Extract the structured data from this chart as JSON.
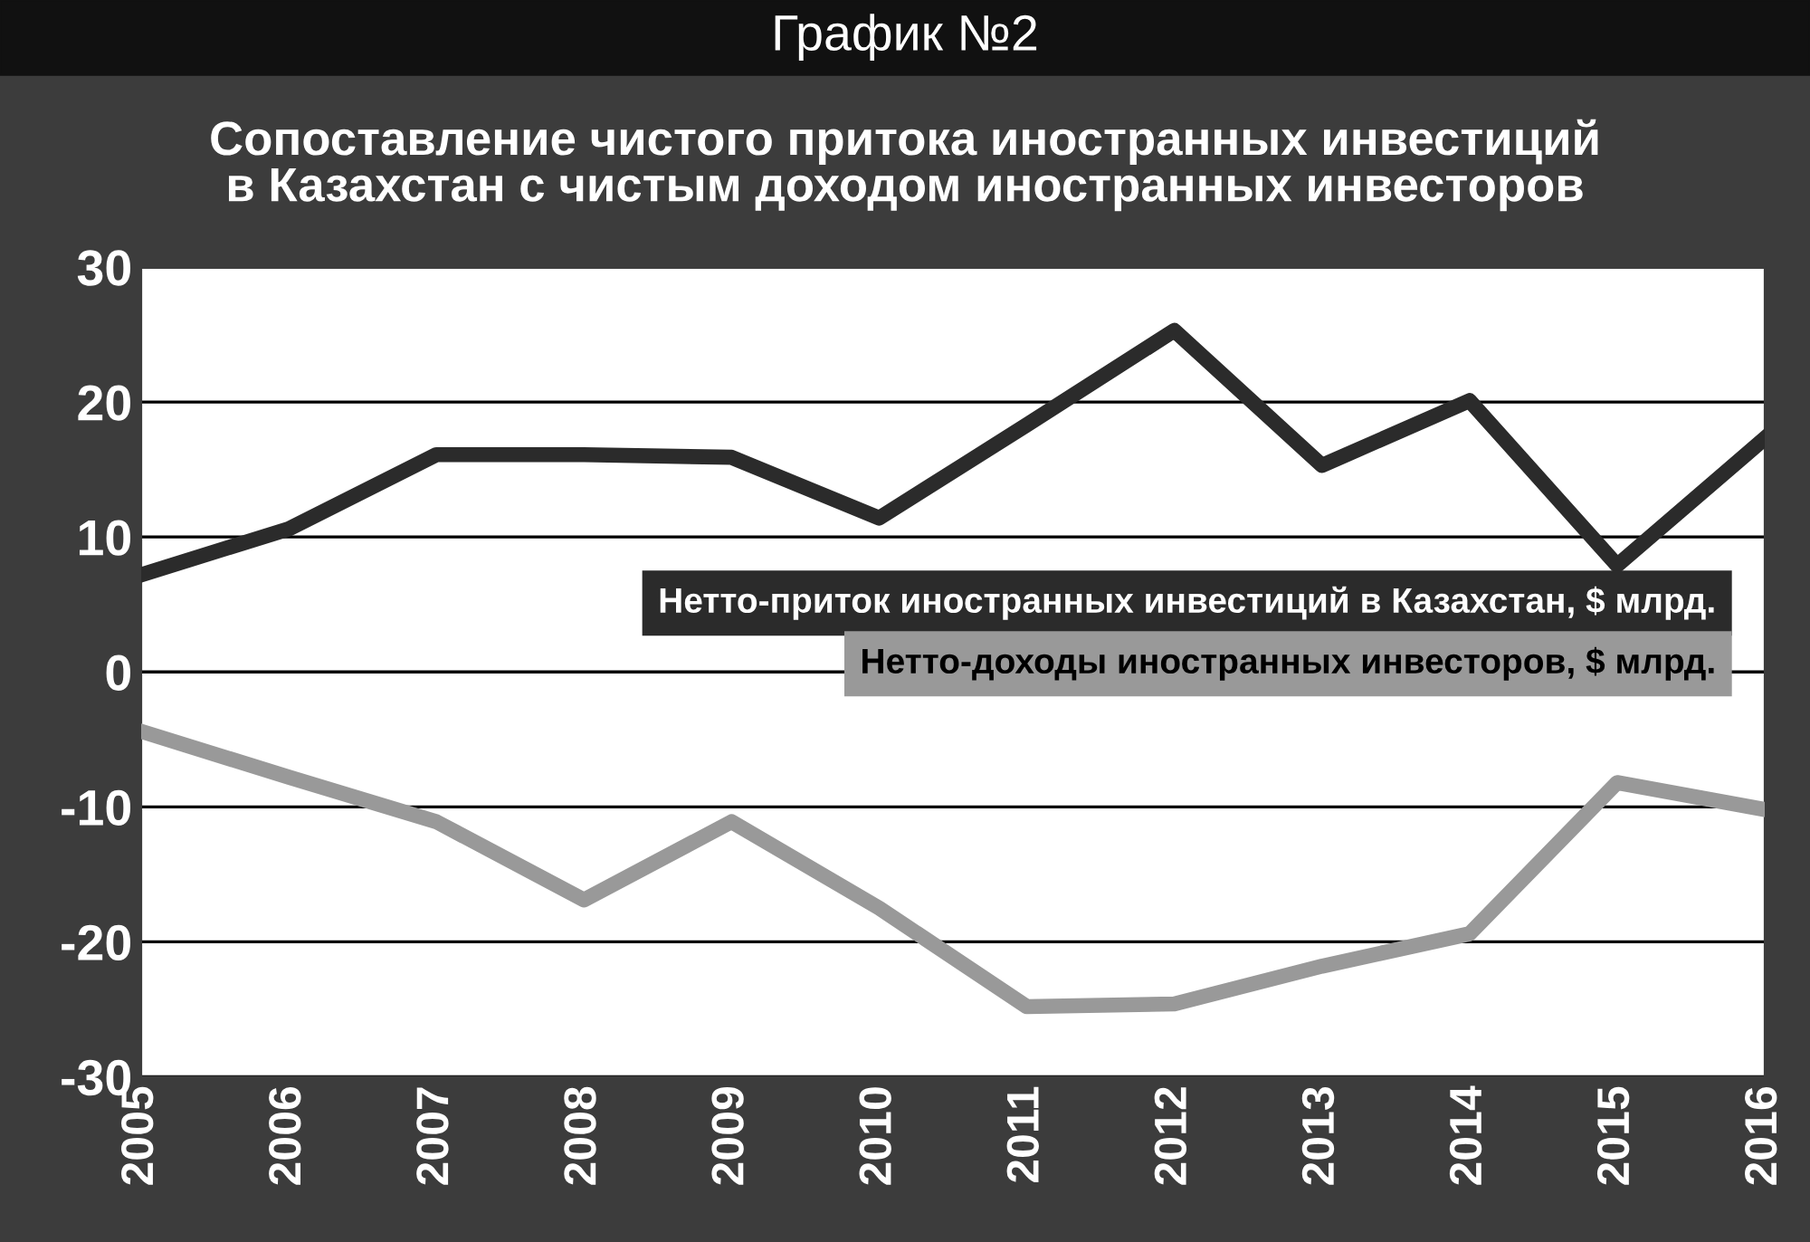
{
  "chart_data": {
    "type": "line",
    "title": "График №2",
    "subtitle": "Сопоставление чистого притока иностранных инвестиций\nв Казахстан с чистым доходом иностранных инвесторов",
    "x": [
      2005,
      2006,
      2007,
      2008,
      2009,
      2010,
      2011,
      2012,
      2013,
      2014,
      2015,
      2016
    ],
    "series": [
      {
        "name": "Нетто-приток иностранных инвестиций в Казахстан, $ млрд.",
        "color": "#2b2b2b",
        "values": [
          7.2,
          10.6,
          16.1,
          16.1,
          15.9,
          11.4,
          18.3,
          25.3,
          15.3,
          20.1,
          7.9,
          17.3
        ]
      },
      {
        "name": "Нетто-доходы иностранных инвесторов, $ млрд.",
        "color": "#999999",
        "values": [
          -4.4,
          -7.8,
          -11.1,
          -16.9,
          -11.1,
          -17.5,
          -24.8,
          -24.6,
          -21.8,
          -19.4,
          -8.2,
          -10.2
        ]
      }
    ],
    "xlim": [
      2005,
      2016
    ],
    "xticks": [
      2005,
      2006,
      2007,
      2008,
      2009,
      2010,
      2011,
      2012,
      2013,
      2014,
      2015,
      2016
    ],
    "ylim": [
      -30,
      30
    ],
    "yticks": [
      -30,
      -20,
      -10,
      0,
      10,
      20,
      30
    ],
    "grid": "y",
    "legend": "right",
    "marker": "none",
    "line_style": "solid"
  }
}
